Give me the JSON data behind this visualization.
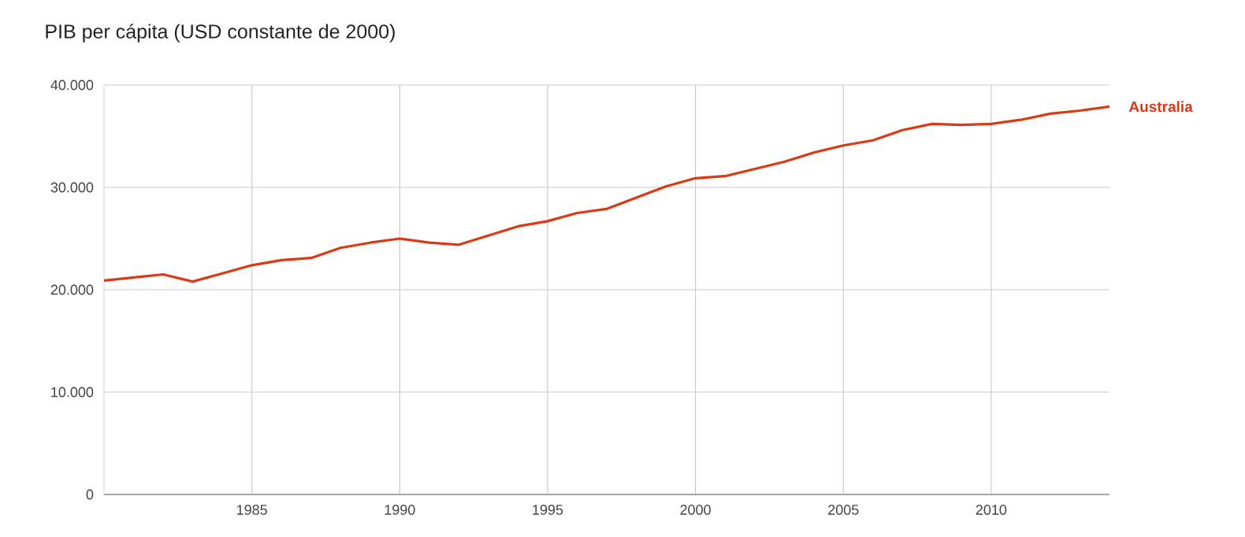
{
  "chart_data": {
    "type": "line",
    "title": "PIB per cápita (USD constante de 2000)",
    "x": [
      1980,
      1981,
      1982,
      1983,
      1984,
      1985,
      1986,
      1987,
      1988,
      1989,
      1990,
      1991,
      1992,
      1993,
      1994,
      1995,
      1996,
      1997,
      1998,
      1999,
      2000,
      2001,
      2002,
      2003,
      2004,
      2005,
      2006,
      2007,
      2008,
      2009,
      2010,
      2011,
      2012,
      2013,
      2014
    ],
    "series": [
      {
        "name": "Australia",
        "color": "#dc3912",
        "values": [
          20900,
          21200,
          21500,
          20800,
          21600,
          22400,
          22900,
          23100,
          24100,
          24600,
          25000,
          24600,
          24400,
          25300,
          26200,
          26700,
          27500,
          27900,
          29000,
          30100,
          30900,
          31100,
          31800,
          32500,
          33400,
          34100,
          34600,
          35600,
          36200,
          36100,
          36200,
          36600,
          37200,
          37500,
          37900
        ]
      }
    ],
    "xlim": [
      1980,
      2014
    ],
    "xticks": [
      1985,
      1990,
      1995,
      2000,
      2005,
      2010
    ],
    "ylim": [
      0,
      40000
    ],
    "yticks": [
      {
        "value": 0,
        "label": "0"
      },
      {
        "value": 10000,
        "label": "10.000"
      },
      {
        "value": 20000,
        "label": "20.000"
      },
      {
        "value": 30000,
        "label": "30.000"
      },
      {
        "value": 40000,
        "label": "40.000"
      }
    ],
    "grid": true,
    "legend": "right",
    "line_style": "solid",
    "marker": "none"
  }
}
